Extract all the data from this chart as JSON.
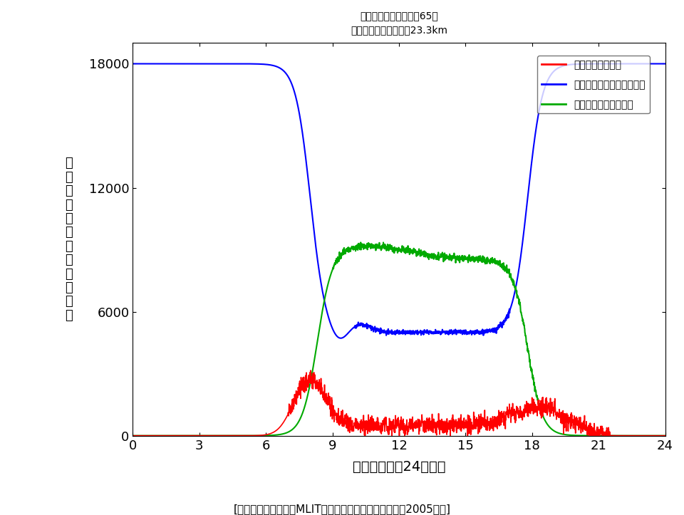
{
  "title_line1": "１日の平均走行時間：65分",
  "title_line2": "１日の平均走行距離：23.3km",
  "xlabel": "１日の時間（24時間）",
  "ylabel_chars": [
    "自",
    "動",
    "車",
    "の",
    "数",
    "（",
    "単",
    "位",
    "．",
    "．",
    "台",
    "）"
  ],
  "footer": "[日本の国土交通省（MLIT）の県内の乗用車交通調査（2005年）]",
  "xlim": [
    0,
    24
  ],
  "ylim": [
    0,
    19000
  ],
  "yticks": [
    0,
    6000,
    12000,
    18000
  ],
  "xticks": [
    0,
    3,
    6,
    9,
    12,
    15,
    18,
    21,
    24
  ],
  "legend_labels": [
    "道路を走行中の車",
    "住宅（家庭）の車庫いる車",
    "職場の駐車場にいる車"
  ],
  "colors": {
    "red": "#ff0000",
    "blue": "#0000ff",
    "green": "#00aa00"
  },
  "total_cars": 18000,
  "background": "#ffffff"
}
